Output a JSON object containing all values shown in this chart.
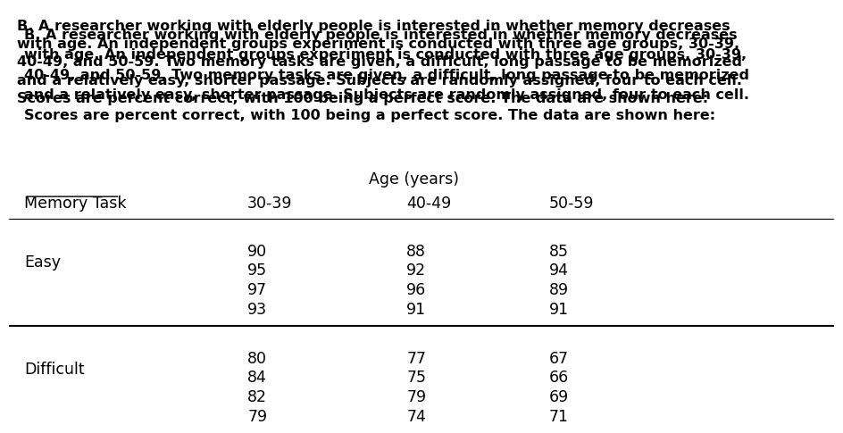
{
  "title_lines": [
    "B. A researcher working with elderly people is interested in whether memory decreases",
    "with age. An independent groups experiment is conducted with three age groups, 30-39,",
    "40-49, and 50-59. Two memory tasks are given, a difficult, long passage to be memorized",
    "and a relatively easy, shorter passage. Subjects are randomly assigned, four to each cell.",
    "Scores are percent correct, with 100 being a perfect score. The data are shown here:"
  ],
  "age_label": "Age (years)",
  "col_header_label": "Memory Task",
  "col_headers": [
    "30-39",
    "40-49",
    "50-59"
  ],
  "row_labels": [
    "Easy",
    "Difficult"
  ],
  "easy_data": {
    "col1": [
      90,
      95,
      97,
      93
    ],
    "col2": [
      88,
      92,
      96,
      91
    ],
    "col3": [
      85,
      94,
      89,
      91
    ]
  },
  "difficult_data": {
    "col1": [
      80,
      84,
      82,
      79
    ],
    "col2": [
      77,
      75,
      79,
      74
    ],
    "col3": [
      67,
      66,
      69,
      71
    ]
  },
  "bg_color": "#ffffff",
  "text_color": "#000000",
  "font_family": "DejaVu Sans",
  "title_fontsize": 11.5,
  "table_fontsize": 12.5,
  "header_fontsize": 12.5
}
